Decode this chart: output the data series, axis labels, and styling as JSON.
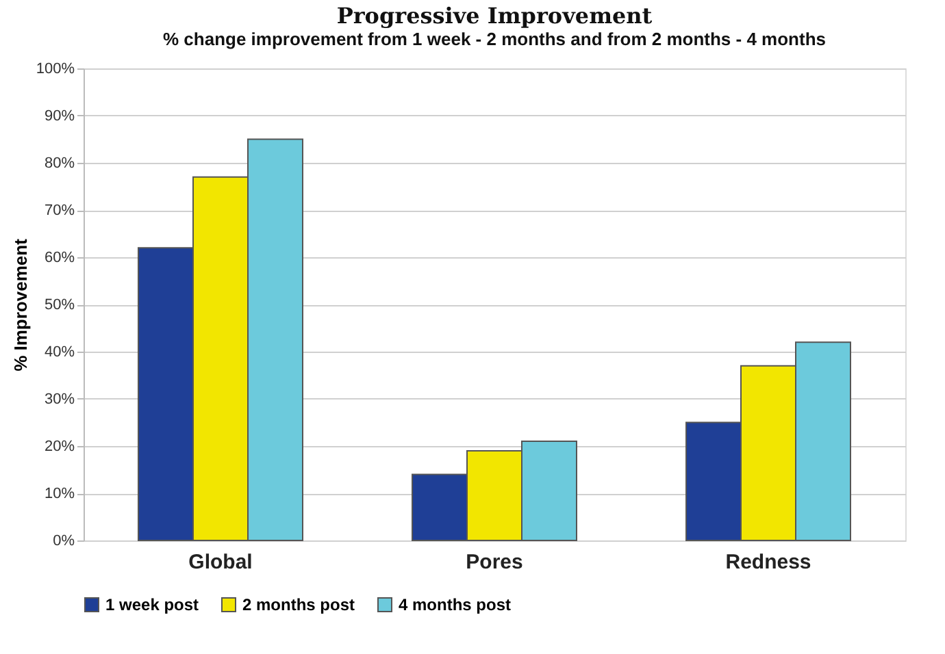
{
  "chart_data": {
    "type": "bar",
    "title": "Progressive Improvement",
    "subtitle": "% change improvement from 1 week - 2 months and from 2 months -  4 months",
    "ylabel": "% Improvement",
    "categories": [
      "Global",
      "Pores",
      "Redness"
    ],
    "series": [
      {
        "name": "1 week post",
        "color": "#1f3f96",
        "values": [
          62,
          14,
          25
        ]
      },
      {
        "name": "2 months post",
        "color": "#f2e600",
        "values": [
          77,
          19,
          37
        ]
      },
      {
        "name": "4 months post",
        "color": "#6ccadc",
        "values": [
          85,
          21,
          42
        ]
      }
    ],
    "ylim": [
      0,
      100
    ],
    "yticks": [
      {
        "value": 0,
        "label": "0%"
      },
      {
        "value": 10,
        "label": "10%"
      },
      {
        "value": 20,
        "label": "20%"
      },
      {
        "value": 30,
        "label": "30%"
      },
      {
        "value": 40,
        "label": "40%"
      },
      {
        "value": 50,
        "label": "50%"
      },
      {
        "value": 60,
        "label": "60%"
      },
      {
        "value": 70,
        "label": "70%"
      },
      {
        "value": 80,
        "label": "80%"
      },
      {
        "value": 90,
        "label": "90%"
      },
      {
        "value": 100,
        "label": "100%"
      }
    ],
    "grid": "y",
    "legend": "bottom"
  }
}
